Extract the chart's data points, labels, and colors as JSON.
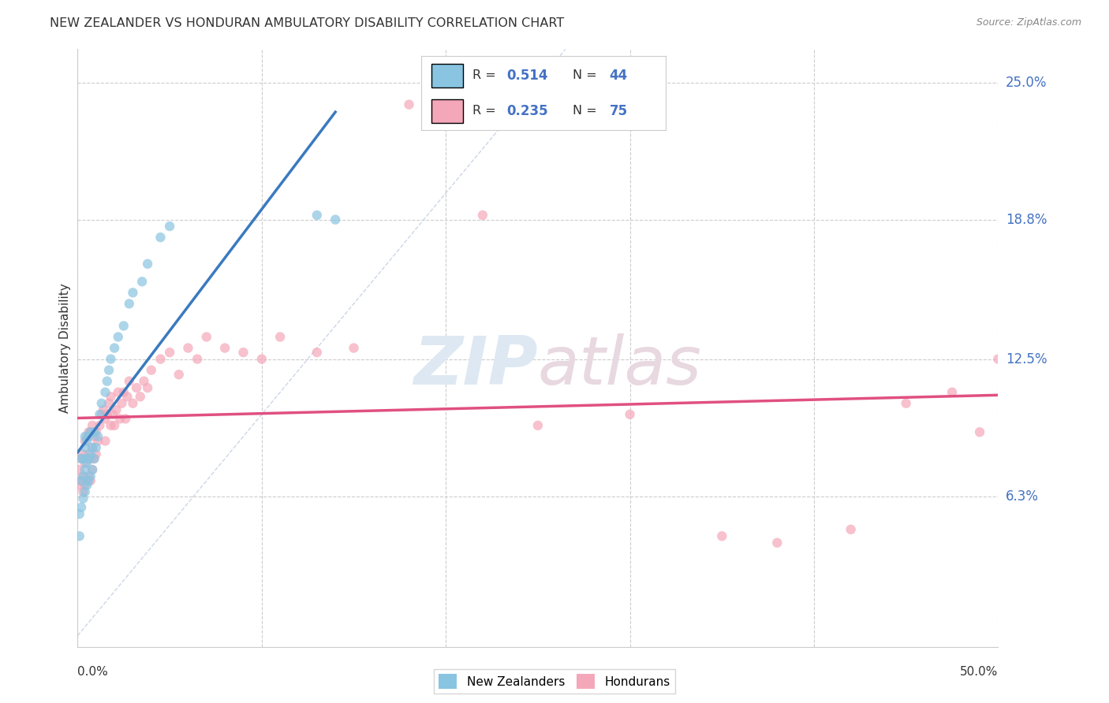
{
  "title": "NEW ZEALANDER VS HONDURAN AMBULATORY DISABILITY CORRELATION CHART",
  "source": "Source: ZipAtlas.com",
  "ylabel": "Ambulatory Disability",
  "ytick_labels": [
    "6.3%",
    "12.5%",
    "18.8%",
    "25.0%"
  ],
  "ytick_values": [
    0.063,
    0.125,
    0.188,
    0.25
  ],
  "xmin": 0.0,
  "xmax": 0.5,
  "ymin": 0.0,
  "ymax": 0.265,
  "nz_color": "#89c4e1",
  "hon_color": "#f4a7b9",
  "regression_nz_color": "#3a7abf",
  "regression_hon_color": "#e05080",
  "diagonal_color": "#c8d8e8",
  "R_nz": 0.514,
  "N_nz": 44,
  "R_hon": 0.235,
  "N_hon": 75,
  "nz_x": [
    0.001,
    0.001,
    0.002,
    0.002,
    0.002,
    0.003,
    0.003,
    0.003,
    0.004,
    0.004,
    0.004,
    0.004,
    0.005,
    0.005,
    0.005,
    0.006,
    0.006,
    0.006,
    0.007,
    0.007,
    0.007,
    0.008,
    0.008,
    0.009,
    0.009,
    0.01,
    0.011,
    0.012,
    0.013,
    0.015,
    0.016,
    0.017,
    0.018,
    0.02,
    0.022,
    0.025,
    0.028,
    0.03,
    0.035,
    0.038,
    0.045,
    0.05,
    0.13,
    0.14
  ],
  "nz_y": [
    0.055,
    0.045,
    0.058,
    0.07,
    0.08,
    0.062,
    0.072,
    0.08,
    0.065,
    0.075,
    0.085,
    0.09,
    0.068,
    0.078,
    0.088,
    0.07,
    0.08,
    0.09,
    0.072,
    0.082,
    0.092,
    0.075,
    0.085,
    0.08,
    0.092,
    0.085,
    0.09,
    0.1,
    0.105,
    0.11,
    0.115,
    0.12,
    0.125,
    0.13,
    0.135,
    0.14,
    0.15,
    0.155,
    0.16,
    0.168,
    0.18,
    0.185,
    0.19,
    0.188
  ],
  "hon_x": [
    0.001,
    0.001,
    0.002,
    0.002,
    0.003,
    0.003,
    0.003,
    0.004,
    0.004,
    0.004,
    0.005,
    0.005,
    0.005,
    0.006,
    0.006,
    0.006,
    0.007,
    0.007,
    0.007,
    0.008,
    0.008,
    0.008,
    0.009,
    0.009,
    0.01,
    0.01,
    0.011,
    0.012,
    0.013,
    0.014,
    0.015,
    0.015,
    0.016,
    0.017,
    0.018,
    0.018,
    0.019,
    0.02,
    0.021,
    0.022,
    0.023,
    0.024,
    0.025,
    0.026,
    0.027,
    0.028,
    0.03,
    0.032,
    0.034,
    0.036,
    0.038,
    0.04,
    0.045,
    0.05,
    0.055,
    0.06,
    0.065,
    0.07,
    0.08,
    0.09,
    0.1,
    0.11,
    0.13,
    0.15,
    0.18,
    0.22,
    0.25,
    0.3,
    0.35,
    0.38,
    0.42,
    0.45,
    0.475,
    0.49,
    0.5
  ],
  "hon_y": [
    0.068,
    0.075,
    0.07,
    0.08,
    0.065,
    0.072,
    0.082,
    0.068,
    0.078,
    0.088,
    0.07,
    0.08,
    0.09,
    0.072,
    0.082,
    0.092,
    0.07,
    0.08,
    0.092,
    0.075,
    0.085,
    0.095,
    0.08,
    0.09,
    0.082,
    0.092,
    0.088,
    0.095,
    0.1,
    0.102,
    0.088,
    0.098,
    0.1,
    0.105,
    0.095,
    0.108,
    0.1,
    0.095,
    0.102,
    0.11,
    0.098,
    0.105,
    0.11,
    0.098,
    0.108,
    0.115,
    0.105,
    0.112,
    0.108,
    0.115,
    0.112,
    0.12,
    0.125,
    0.128,
    0.118,
    0.13,
    0.125,
    0.135,
    0.13,
    0.128,
    0.125,
    0.135,
    0.128,
    0.13,
    0.24,
    0.19,
    0.095,
    0.1,
    0.045,
    0.042,
    0.048,
    0.105,
    0.11,
    0.092,
    0.125
  ]
}
